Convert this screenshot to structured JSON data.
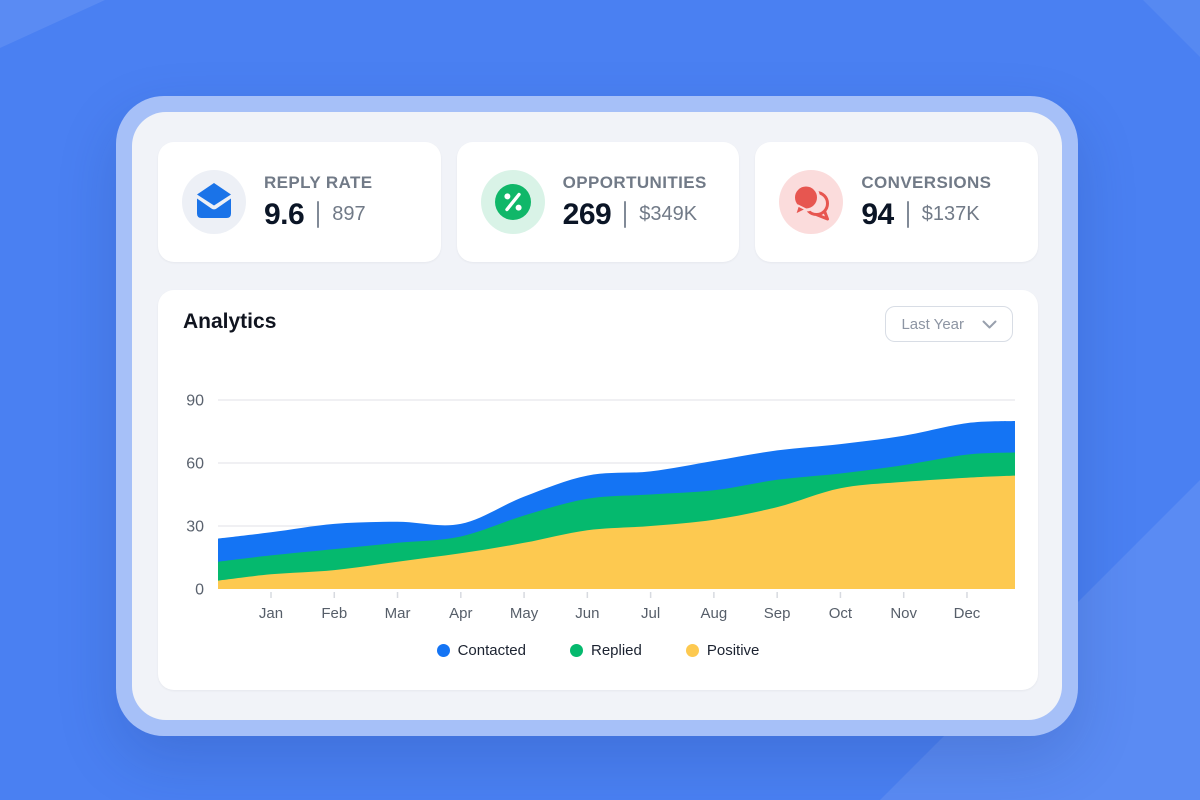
{
  "stats": [
    {
      "label": "REPLY RATE",
      "value": "9.6",
      "secondary": "897",
      "icon": "mail-open-icon",
      "icon_color": "#1a73e8",
      "icon_bg": "#edf0f6"
    },
    {
      "label": "OPPORTUNITIES",
      "value": "269",
      "secondary": "$349K",
      "icon": "percent-icon",
      "icon_color": "#10b769",
      "icon_bg": "#d9f3e7"
    },
    {
      "label": "CONVERSIONS",
      "value": "94",
      "secondary": "$137K",
      "icon": "chat-bubbles-icon",
      "icon_color": "#e75650",
      "icon_bg": "#fbdcdc"
    }
  ],
  "analytics": {
    "title": "Analytics",
    "period_selector": {
      "value": "Last Year"
    }
  },
  "chart_data": {
    "type": "area",
    "stacked": true,
    "title": "Analytics",
    "categories": [
      "Jan",
      "Feb",
      "Mar",
      "Apr",
      "May",
      "Jun",
      "Jul",
      "Aug",
      "Sep",
      "Oct",
      "Nov",
      "Dec"
    ],
    "series": [
      {
        "name": "Contacted",
        "color": "#1474f4",
        "values": [
          11,
          12,
          10,
          6,
          9,
          11,
          11,
          14,
          14,
          14,
          14,
          15
        ]
      },
      {
        "name": "Replied",
        "color": "#05b96e",
        "values": [
          9,
          10,
          9,
          8,
          13,
          15,
          15,
          14,
          13,
          7,
          8,
          11
        ]
      },
      {
        "name": "Positive",
        "color": "#fdc950",
        "values": [
          7,
          9,
          13,
          17,
          22,
          28,
          30,
          33,
          39,
          48,
          51,
          53
        ]
      }
    ],
    "stack_order": [
      "Positive",
      "Replied",
      "Contacted"
    ],
    "edge_start": {
      "Positive": 4,
      "Replied": 9,
      "Contacted": 11
    },
    "edge_end": {
      "Positive": 54,
      "Replied": 11,
      "Contacted": 15
    },
    "ylim": [
      0,
      90
    ],
    "yticks": [
      0,
      30,
      60,
      90
    ],
    "grid": true,
    "xlabel": "",
    "ylabel": "",
    "legend": [
      "Contacted",
      "Replied",
      "Positive"
    ],
    "legend_position": "bottom"
  }
}
